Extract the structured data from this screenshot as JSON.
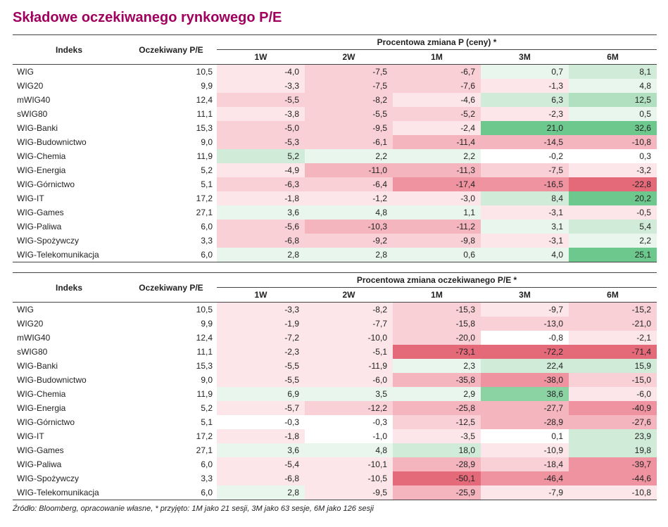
{
  "title": "Składowe oczekiwanego rynkowego P/E",
  "title_color": "#a0005e",
  "source_note": "Źródło: Bloomberg, opracowanie własne,  * przyjęto: 1M jako 21 sesji, 3M jako 63 sesje, 6M jako 126 sesji",
  "headers": {
    "index": "Indeks",
    "pe": "Oczekiwany P/E",
    "periods": [
      "1W",
      "2W",
      "1M",
      "3M",
      "6M"
    ]
  },
  "colors": {
    "neg5": "#e46a7a",
    "neg4": "#ee939f",
    "neg3": "#f5b5be",
    "neg2": "#f9d0d6",
    "neg1": "#fce6e9",
    "zero": "#ffffff",
    "pos1": "#e9f6ed",
    "pos2": "#d0ecd8",
    "pos3": "#b0e0bf",
    "pos4": "#8cd3a3",
    "pos5": "#6cc88c"
  },
  "tables": [
    {
      "span_header": "Procentowa zmiana P (ceny) *",
      "color_scale_abs": 25,
      "rows": [
        {
          "idx": "WIG",
          "pe": 10.5,
          "vals": [
            -4.0,
            -7.5,
            -6.7,
            0.7,
            8.1
          ]
        },
        {
          "idx": "WIG20",
          "pe": 9.9,
          "vals": [
            -3.3,
            -7.5,
            -7.6,
            -1.3,
            4.8
          ]
        },
        {
          "idx": "mWIG40",
          "pe": 12.4,
          "vals": [
            -5.5,
            -8.2,
            -4.6,
            6.3,
            12.5
          ]
        },
        {
          "idx": "sWIG80",
          "pe": 11.1,
          "vals": [
            -3.8,
            -5.5,
            -5.2,
            -2.3,
            0.5
          ]
        },
        {
          "idx": "WIG-Banki",
          "pe": 15.3,
          "vals": [
            -5.0,
            -9.5,
            -2.4,
            21.0,
            32.6
          ]
        },
        {
          "idx": "WIG-Budownictwo",
          "pe": 9.0,
          "vals": [
            -5.3,
            -6.1,
            -11.4,
            -14.5,
            -10.8
          ]
        },
        {
          "idx": "WIG-Chemia",
          "pe": 11.9,
          "vals": [
            5.2,
            2.2,
            2.2,
            -0.2,
            0.3
          ]
        },
        {
          "idx": "WIG-Energia",
          "pe": 5.2,
          "vals": [
            -4.9,
            -11.0,
            -11.3,
            -7.5,
            -3.2
          ]
        },
        {
          "idx": "WIG-Górnictwo",
          "pe": 5.1,
          "vals": [
            -6.3,
            -6.4,
            -17.4,
            -16.5,
            -22.8
          ]
        },
        {
          "idx": "WIG-IT",
          "pe": 17.2,
          "vals": [
            -1.8,
            -1.2,
            -3.0,
            8.4,
            20.2
          ]
        },
        {
          "idx": "WIG-Games",
          "pe": 27.1,
          "vals": [
            3.6,
            4.8,
            1.1,
            -3.1,
            -0.5
          ]
        },
        {
          "idx": "WIG-Paliwa",
          "pe": 6.0,
          "vals": [
            -5.6,
            -10.3,
            -11.2,
            3.1,
            5.4
          ]
        },
        {
          "idx": "WIG-Spożywczy",
          "pe": 3.3,
          "vals": [
            -6.8,
            -9.2,
            -9.8,
            -3.1,
            2.2
          ]
        },
        {
          "idx": "WIG-Telekomunikacja",
          "pe": 6.0,
          "vals": [
            2.8,
            2.8,
            0.6,
            4.0,
            25.1
          ]
        }
      ]
    },
    {
      "span_header": "Procentowa zmiana oczekiwanego P/E *",
      "color_scale_abs": 60,
      "rows": [
        {
          "idx": "WIG",
          "pe": 10.5,
          "vals": [
            -3.3,
            -8.2,
            -15.3,
            -9.7,
            -15.2
          ]
        },
        {
          "idx": "WIG20",
          "pe": 9.9,
          "vals": [
            -1.9,
            -7.7,
            -15.8,
            -13.0,
            -21.0
          ]
        },
        {
          "idx": "mWIG40",
          "pe": 12.4,
          "vals": [
            -7.2,
            -10.0,
            -20.0,
            -0.8,
            -2.1
          ]
        },
        {
          "idx": "sWIG80",
          "pe": 11.1,
          "vals": [
            -2.3,
            -5.1,
            -73.1,
            -72.2,
            -71.4
          ]
        },
        {
          "idx": "WIG-Banki",
          "pe": 15.3,
          "vals": [
            -5.5,
            -11.9,
            2.3,
            22.4,
            15.9
          ]
        },
        {
          "idx": "WIG-Budownictwo",
          "pe": 9.0,
          "vals": [
            -5.5,
            -6.0,
            -35.8,
            -38.0,
            -15.0
          ]
        },
        {
          "idx": "WIG-Chemia",
          "pe": 11.9,
          "vals": [
            6.9,
            3.5,
            2.9,
            38.6,
            -6.0
          ]
        },
        {
          "idx": "WIG-Energia",
          "pe": 5.2,
          "vals": [
            -5.7,
            -12.2,
            -25.8,
            -27.7,
            -40.9
          ]
        },
        {
          "idx": "WIG-Górnictwo",
          "pe": 5.1,
          "vals": [
            -0.3,
            -0.3,
            -12.5,
            -28.9,
            -27.6
          ]
        },
        {
          "idx": "WIG-IT",
          "pe": 17.2,
          "vals": [
            -1.8,
            -1.0,
            -3.5,
            0.1,
            23.9
          ]
        },
        {
          "idx": "WIG-Games",
          "pe": 27.1,
          "vals": [
            3.6,
            4.8,
            18.0,
            -10.9,
            19.8
          ]
        },
        {
          "idx": "WIG-Paliwa",
          "pe": 6.0,
          "vals": [
            -5.4,
            -10.1,
            -28.9,
            -18.4,
            -39.7
          ]
        },
        {
          "idx": "WIG-Spożywczy",
          "pe": 3.3,
          "vals": [
            -6.8,
            -10.5,
            -50.1,
            -46.4,
            -44.6
          ]
        },
        {
          "idx": "WIG-Telekomunikacja",
          "pe": 6.0,
          "vals": [
            2.8,
            -9.5,
            -25.9,
            -7.9,
            -10.8
          ]
        }
      ]
    }
  ]
}
